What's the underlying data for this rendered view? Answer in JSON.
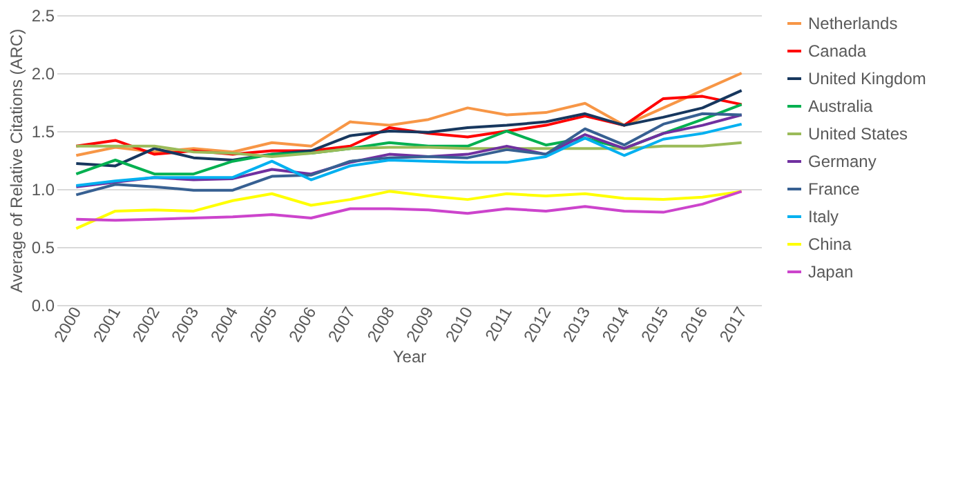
{
  "chart_data": {
    "type": "line",
    "xlabel": "Year",
    "ylabel": "Average of Relative Citations (ARC)",
    "categories": [
      "2000",
      "2001",
      "2002",
      "2003",
      "2004",
      "2005",
      "2006",
      "2007",
      "2008",
      "2009",
      "2010",
      "2011",
      "2012",
      "2013",
      "2014",
      "2015",
      "2016",
      "2017"
    ],
    "ylim": [
      0,
      2.5
    ],
    "yticks": [
      {
        "value": 0,
        "label": "0.0"
      },
      {
        "value": 0.5,
        "label": "0.5"
      },
      {
        "value": 1,
        "label": "1.0"
      },
      {
        "value": 1.5,
        "label": "1.5"
      },
      {
        "value": 2,
        "label": "2.0"
      },
      {
        "value": 2.5,
        "label": "2.5"
      }
    ],
    "grid": "y",
    "legend": "right",
    "marker": "none",
    "line_style": "solid",
    "series": [
      {
        "name": "Netherlands",
        "color": "#f79646",
        "values": [
          1.29,
          1.36,
          1.32,
          1.35,
          1.32,
          1.4,
          1.37,
          1.58,
          1.55,
          1.6,
          1.7,
          1.64,
          1.66,
          1.74,
          1.55,
          1.7,
          1.85,
          2.0
        ]
      },
      {
        "name": "Canada",
        "color": "#ff0000",
        "values": [
          1.37,
          1.42,
          1.3,
          1.33,
          1.3,
          1.33,
          1.33,
          1.37,
          1.53,
          1.48,
          1.45,
          1.5,
          1.55,
          1.63,
          1.55,
          1.78,
          1.8,
          1.73
        ]
      },
      {
        "name": "United Kingdom",
        "color": "#17375e",
        "values": [
          1.22,
          1.2,
          1.35,
          1.27,
          1.25,
          1.3,
          1.33,
          1.46,
          1.5,
          1.49,
          1.53,
          1.55,
          1.58,
          1.65,
          1.55,
          1.62,
          1.7,
          1.85
        ]
      },
      {
        "name": "Australia",
        "color": "#00b050",
        "values": [
          1.13,
          1.25,
          1.13,
          1.13,
          1.24,
          1.3,
          1.31,
          1.35,
          1.4,
          1.37,
          1.37,
          1.5,
          1.38,
          1.44,
          1.35,
          1.48,
          1.6,
          1.73
        ]
      },
      {
        "name": "United States",
        "color": "#9bbb59",
        "values": [
          1.37,
          1.37,
          1.37,
          1.32,
          1.31,
          1.28,
          1.31,
          1.35,
          1.36,
          1.36,
          1.35,
          1.35,
          1.35,
          1.35,
          1.35,
          1.37,
          1.37,
          1.4
        ]
      },
      {
        "name": "Germany",
        "color": "#7030a0",
        "values": [
          1.02,
          1.06,
          1.1,
          1.08,
          1.09,
          1.17,
          1.13,
          1.23,
          1.3,
          1.28,
          1.3,
          1.37,
          1.3,
          1.47,
          1.35,
          1.48,
          1.55,
          1.64
        ]
      },
      {
        "name": "France",
        "color": "#376092",
        "values": [
          0.95,
          1.04,
          1.02,
          0.99,
          0.99,
          1.11,
          1.12,
          1.24,
          1.27,
          1.28,
          1.27,
          1.34,
          1.3,
          1.52,
          1.38,
          1.56,
          1.65,
          1.64
        ]
      },
      {
        "name": "Italy",
        "color": "#00b0f0",
        "values": [
          1.03,
          1.07,
          1.1,
          1.1,
          1.1,
          1.24,
          1.08,
          1.2,
          1.25,
          1.24,
          1.23,
          1.23,
          1.28,
          1.44,
          1.29,
          1.43,
          1.48,
          1.56
        ]
      },
      {
        "name": "China",
        "color": "#ffff00",
        "values": [
          0.66,
          0.81,
          0.82,
          0.81,
          0.9,
          0.96,
          0.86,
          0.91,
          0.98,
          0.94,
          0.91,
          0.96,
          0.94,
          0.96,
          0.92,
          0.91,
          0.93,
          0.98
        ]
      },
      {
        "name": "Japan",
        "color": "#cc44cc",
        "values": [
          0.74,
          0.73,
          0.74,
          0.75,
          0.76,
          0.78,
          0.75,
          0.83,
          0.83,
          0.82,
          0.79,
          0.83,
          0.81,
          0.85,
          0.81,
          0.8,
          0.87,
          0.98
        ]
      }
    ]
  }
}
